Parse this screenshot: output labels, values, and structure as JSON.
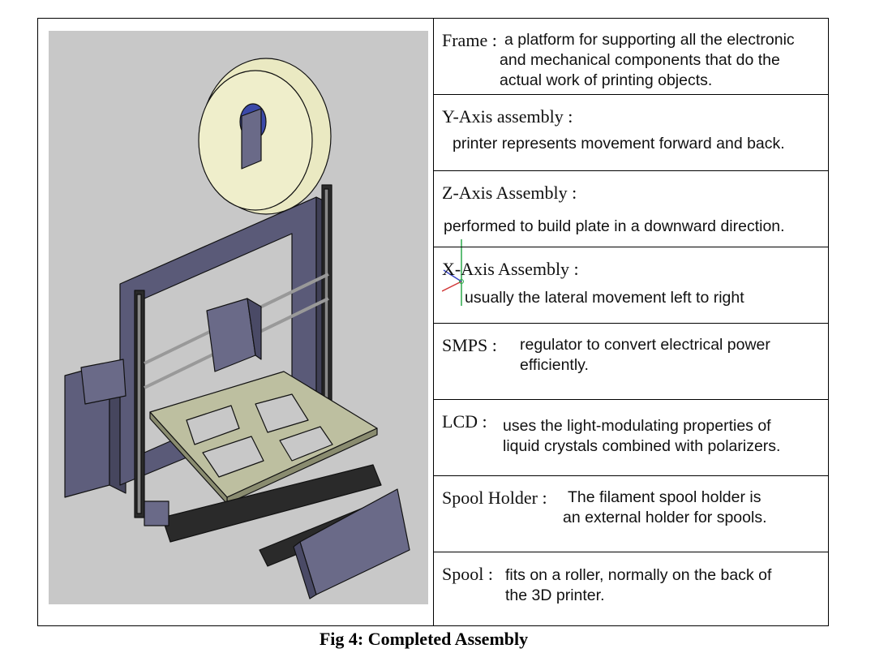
{
  "figure": {
    "caption": "Fig 4: Completed Assembly",
    "image_description_icon": "3d-printer-cad-icon"
  },
  "components": [
    {
      "term": "Frame :",
      "desc": [
        "a platform for supporting all the electronic",
        "and mechanical components that do the",
        "actual work of printing objects."
      ]
    },
    {
      "term": "Y-Axis assembly :",
      "desc": [
        "printer represents movement forward and back."
      ]
    },
    {
      "term": "Z-Axis Assembly :",
      "desc": [
        "performed to build plate in a downward direction."
      ]
    },
    {
      "term": "X-Axis Assembly :",
      "desc": [
        "usually the lateral movement left to right"
      ]
    },
    {
      "term": "SMPS :",
      "desc": [
        "regulator to convert electrical power",
        "efficiently."
      ]
    },
    {
      "term": "LCD :",
      "desc": [
        "uses the light-modulating properties of",
        "liquid crystals combined with polarizers."
      ]
    },
    {
      "term": "Spool Holder :",
      "desc": [
        "The filament spool holder is",
        "an external holder for spools."
      ]
    },
    {
      "term": "Spool :",
      "desc": [
        "fits on a roller, normally on the back of",
        "the 3D printer."
      ]
    }
  ],
  "colors": {
    "frame": "#5a5a78",
    "spool": "#eae9c2",
    "plate": "#bdbfa0",
    "background": "#c8c8c8"
  }
}
